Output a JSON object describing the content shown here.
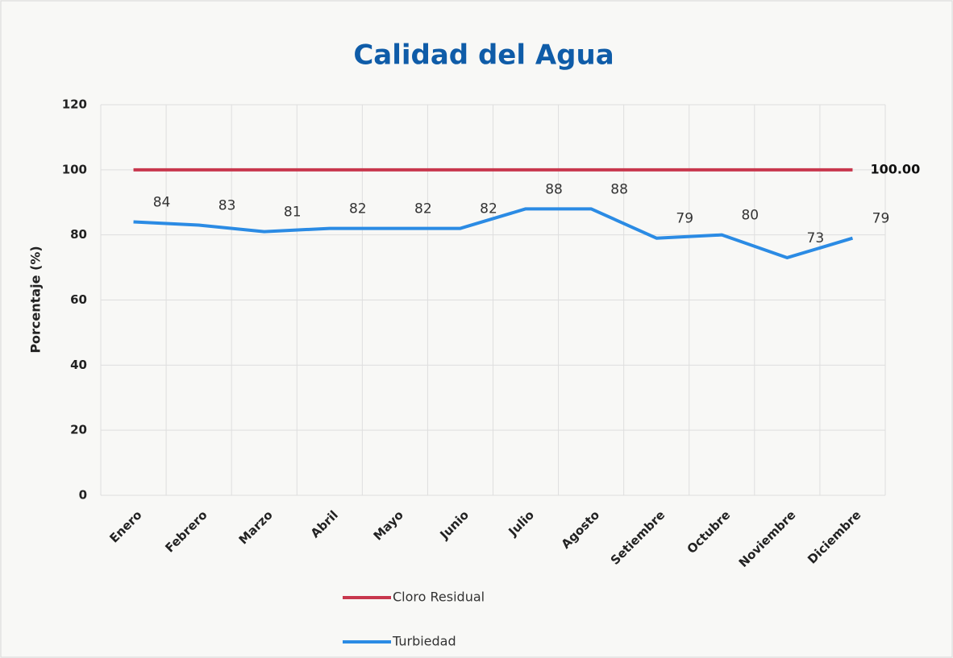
{
  "chart_data": {
    "type": "line",
    "title": "Calidad del Agua",
    "y_label": "Porcentaje (%)",
    "categories": [
      "Enero",
      "Febrero",
      "Marzo",
      "Abril",
      "Mayo",
      "Junio",
      "Julio",
      "Agosto",
      "Setiembre",
      "Octubre",
      "Noviembre",
      "Diciembre"
    ],
    "series": [
      {
        "name": "Cloro Residual",
        "color": "#c8374d",
        "values": [
          100,
          100,
          100,
          100,
          100,
          100,
          100,
          100,
          100,
          100,
          100,
          100
        ],
        "value_labels": [
          null,
          null,
          null,
          null,
          null,
          null,
          null,
          null,
          null,
          null,
          null,
          "100.00"
        ]
      },
      {
        "name": "Turbiedad",
        "color": "#2b8be4",
        "values": [
          84,
          83,
          81,
          82,
          82,
          82,
          88,
          88,
          79,
          80,
          73,
          79
        ],
        "data_labels": true
      }
    ],
    "ylim": [
      0,
      120
    ],
    "yticks": [
      0,
      20,
      40,
      60,
      80,
      100,
      120
    ],
    "grid": true,
    "legend": "bottom"
  }
}
